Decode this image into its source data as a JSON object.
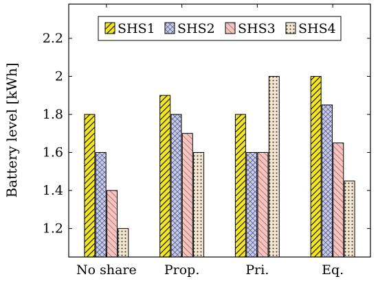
{
  "chart_data": {
    "type": "bar",
    "title": "",
    "xlabel": "",
    "ylabel": "Battery level [kWh]",
    "categories": [
      "No share",
      "Prop.",
      "Pri.",
      "Eq."
    ],
    "series": [
      {
        "name": "SHS1",
        "values": [
          1.8,
          1.9,
          1.8,
          2.0
        ],
        "color": "#f5e71e",
        "pattern": "diagonal-lines"
      },
      {
        "name": "SHS2",
        "values": [
          1.6,
          1.8,
          1.6,
          1.85
        ],
        "color": "#c7cbe8",
        "pattern": "crosshatch"
      },
      {
        "name": "SHS3",
        "values": [
          1.4,
          1.7,
          1.6,
          1.65
        ],
        "color": "#f4c4c0",
        "pattern": "diagonal-lines"
      },
      {
        "name": "SHS4",
        "values": [
          1.2,
          1.6,
          2.0,
          1.45
        ],
        "color": "#f0e6d2",
        "pattern": "dots"
      }
    ],
    "ylim": [
      1.05,
      2.38
    ],
    "yticks": [
      1.2,
      1.4,
      1.6,
      1.8,
      2,
      2.2
    ],
    "ytick_labels": [
      "1.2",
      "1.4",
      "1.6",
      "1.8",
      "2",
      "2.2"
    ],
    "legend": {
      "position": "top-center",
      "columns": 4
    },
    "grid": false
  }
}
